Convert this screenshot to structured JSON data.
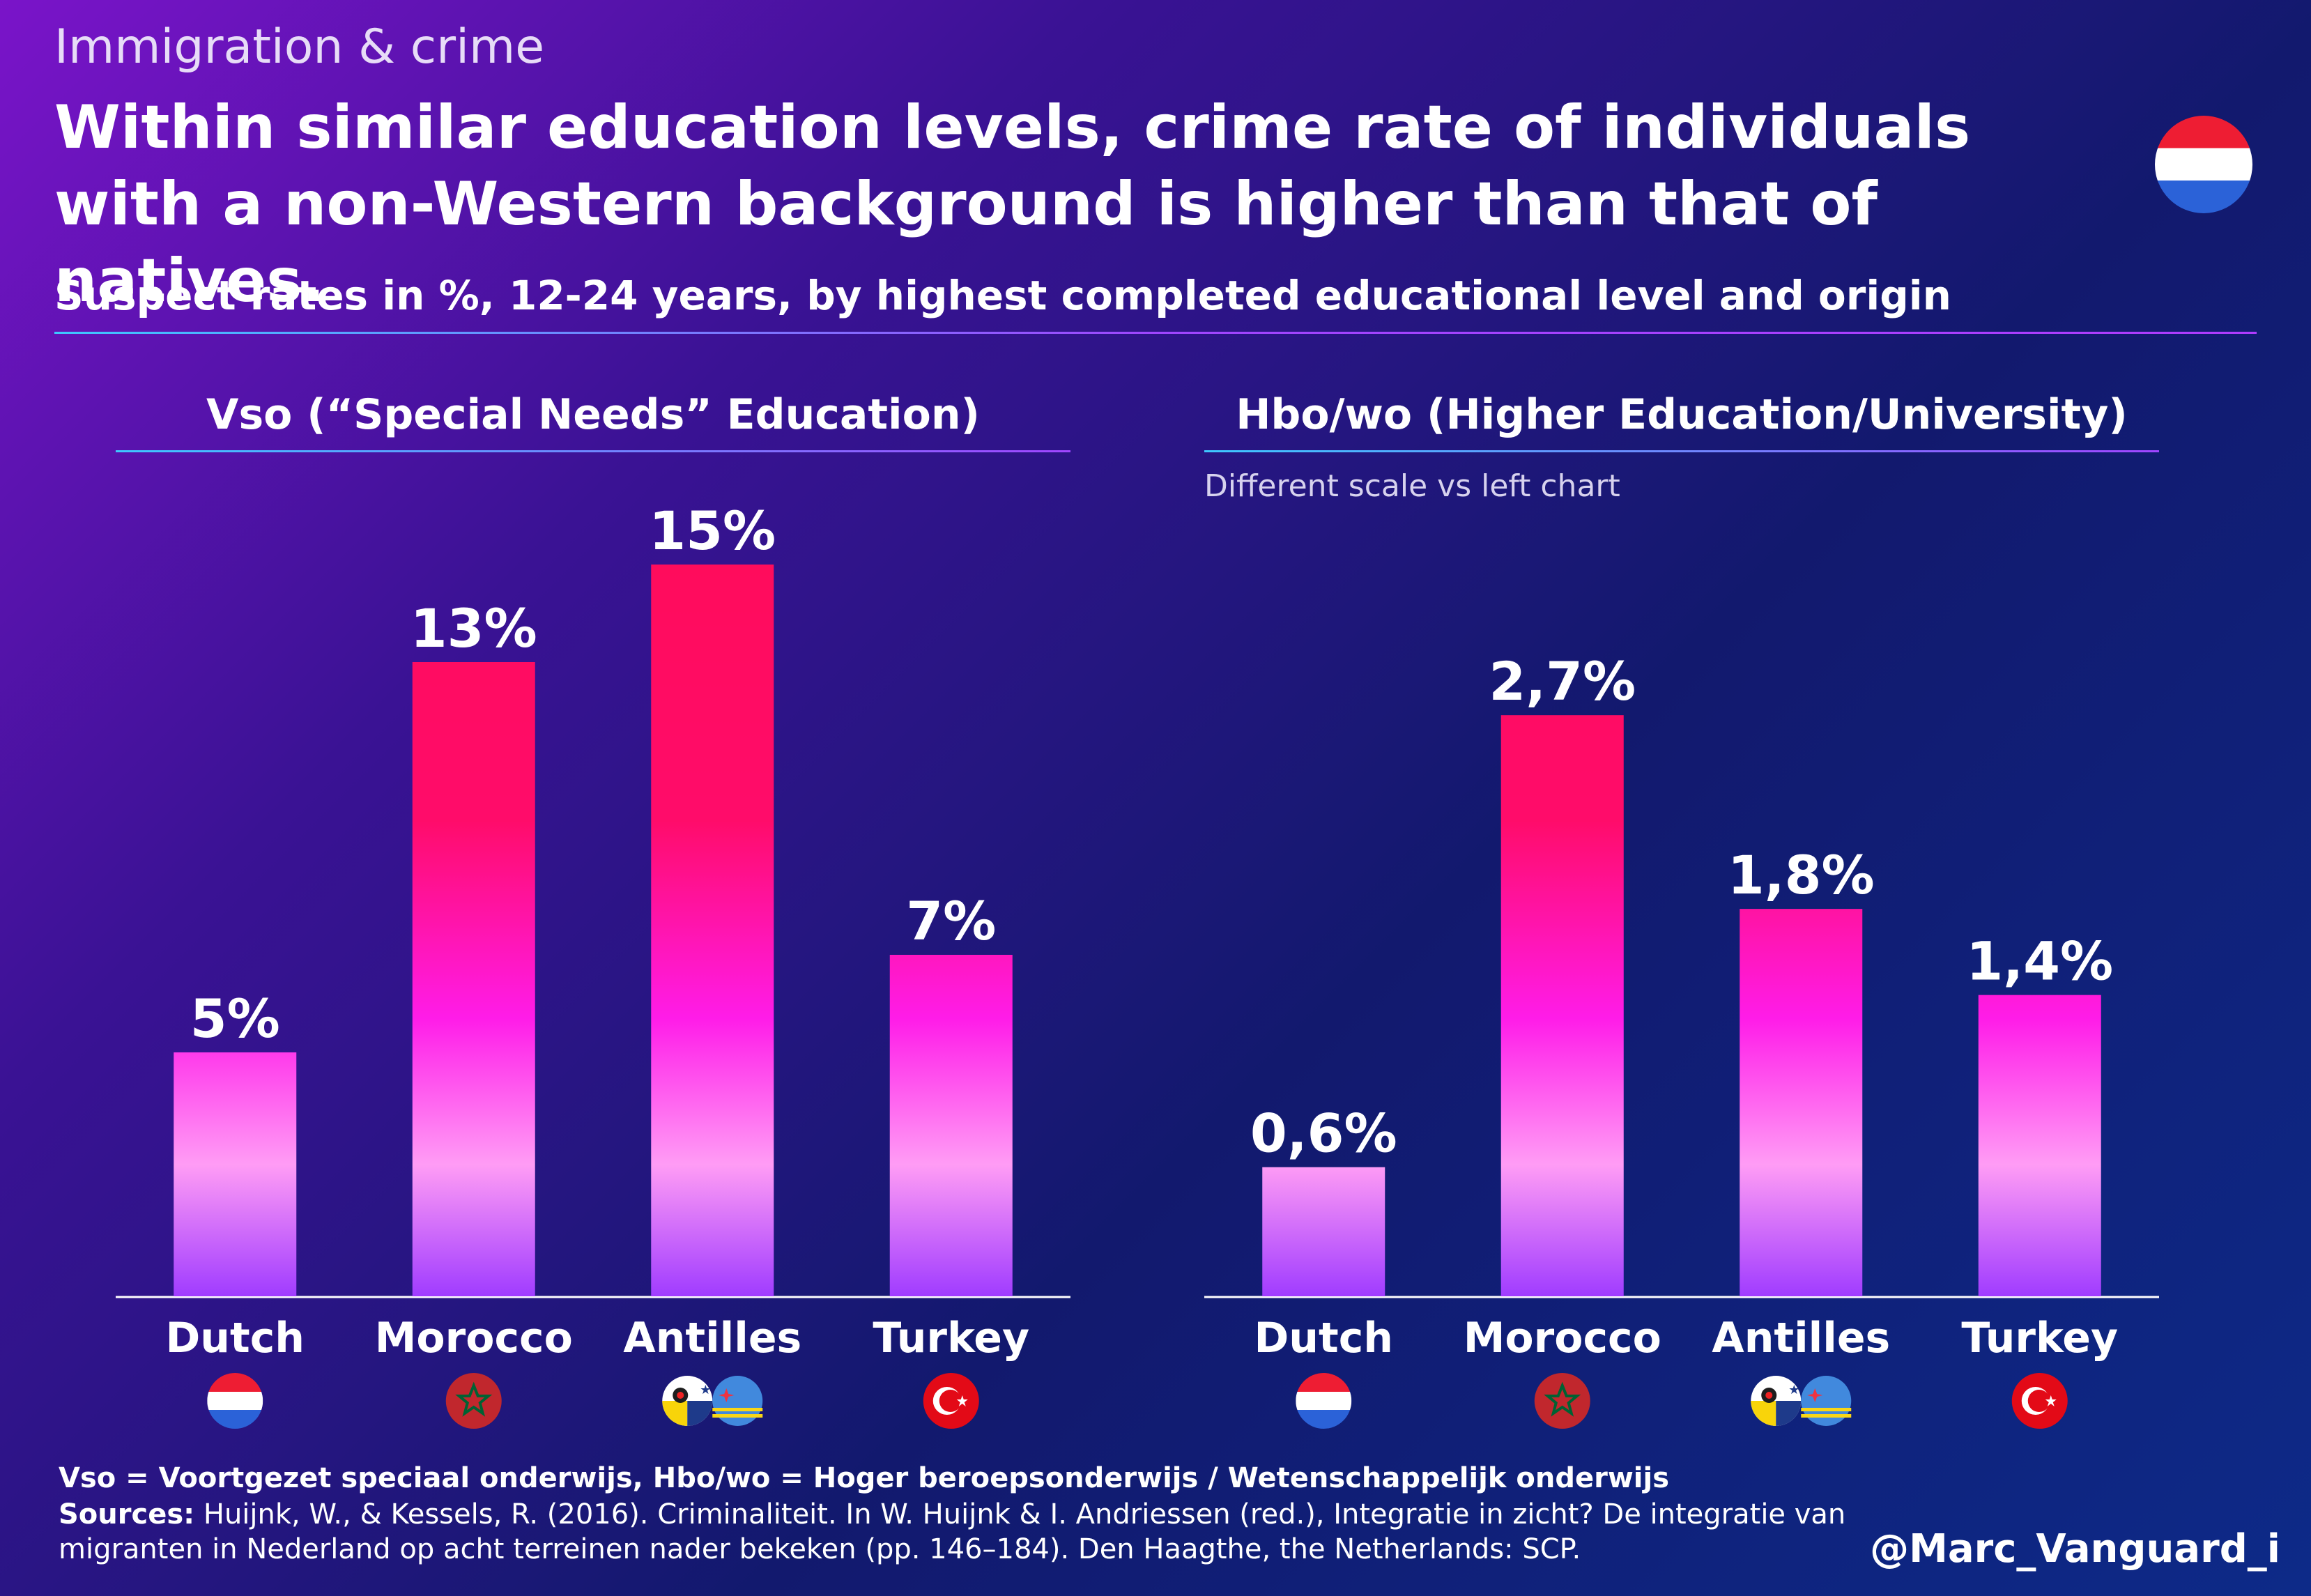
{
  "header": {
    "kicker": "Immigration & crime",
    "headline": "Within similar education levels, crime rate of individuals with a non-Western background is higher than that of natives.",
    "subtitle": "Suspect rates in %, 12-24 years, by highest completed educational level and origin"
  },
  "colors": {
    "bar_low": "#a03cff",
    "bar_mid": "#ff5cf0",
    "bar_top": "#ff0c5c",
    "accent_line": "#3ec8ff"
  },
  "chart_data": [
    {
      "type": "bar",
      "title": "Vso (“Special Needs” Education)",
      "categories": [
        "Dutch",
        "Morocco",
        "Antilles",
        "Turkey"
      ],
      "values": [
        5,
        13,
        15,
        7
      ],
      "value_labels": [
        "5%",
        "13%",
        "15%",
        "7%"
      ],
      "unit": "%",
      "ylim": [
        0,
        15
      ],
      "grid": false,
      "flags": [
        "netherlands-flag-icon",
        "morocco-flag-icon",
        "antilles-flags-icon",
        "turkey-flag-icon"
      ]
    },
    {
      "type": "bar",
      "title": "Hbo/wo (Higher Education/University)",
      "note": "Different scale vs left chart",
      "categories": [
        "Dutch",
        "Morocco",
        "Antilles",
        "Turkey"
      ],
      "values": [
        0.6,
        2.7,
        1.8,
        1.4
      ],
      "value_labels": [
        "0,6%",
        "2,7%",
        "1,8%",
        "1,4%"
      ],
      "unit": "%",
      "ylim": [
        0,
        3.4
      ],
      "grid": false,
      "flags": [
        "netherlands-flag-icon",
        "morocco-flag-icon",
        "antilles-flags-icon",
        "turkey-flag-icon"
      ]
    }
  ],
  "footer": {
    "abbreviations": "Vso = Voortgezet speciaal onderwijs, Hbo/wo = Hoger beroepsonderwijs / Wetenschappelijk onderwijs",
    "sources_label": "Sources:",
    "sources_text": "Huijnk, W., & Kessels, R. (2016). Criminaliteit. In W. Huijnk & I. Andriessen (red.), Integratie in zicht? De integratie van migranten in Nederland op acht terreinen nader bekeken (pp. 146–184). Den Haagthe, the Netherlands: SCP.",
    "handle": "@Marc_Vanguard_i"
  }
}
